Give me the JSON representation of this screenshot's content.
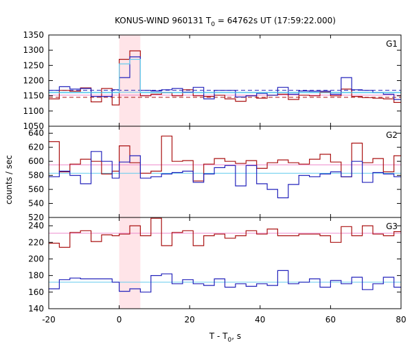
{
  "chart_data": {
    "type": "line",
    "title": "KONUS-WIND 960131 T",
    "title_sub": "0",
    "title_rest": " = 64762s UT (17:59:22.000)",
    "xlabel": "T - T",
    "xlabel_sub": "0",
    "xlabel_rest": ", s",
    "ylabel": "counts / sec",
    "xlim": [
      -20,
      80
    ],
    "xticks": [
      -20,
      0,
      20,
      40,
      60,
      80
    ],
    "highlight_interval": [
      0,
      6
    ],
    "colors": {
      "red": "#aa1111",
      "blue": "#2222bb",
      "pink": "#ee88cc",
      "cyan": "#66ccee",
      "highlight": "#ffe4e8"
    },
    "panels": [
      {
        "name": "G1",
        "ylim": [
          1050,
          1350
        ],
        "yticks": [
          1050,
          1100,
          1150,
          1200,
          1250,
          1300,
          1350
        ],
        "bins_x": [
          -20,
          -17,
          -14,
          -11,
          -8,
          -5,
          -2,
          0,
          3,
          6,
          9,
          12,
          15,
          18,
          21,
          24,
          27,
          30,
          33,
          36,
          39,
          42,
          45,
          48,
          51,
          54,
          57,
          60,
          63,
          66,
          69,
          72,
          75,
          78,
          80
        ],
        "series": [
          {
            "color": "red",
            "values": [
              1140,
              1168,
              1165,
              1176,
              1130,
              1174,
              1120,
              1270,
              1298,
              1150,
              1155,
              1160,
              1150,
              1170,
              1150,
              1148,
              1152,
              1140,
              1132,
              1150,
              1142,
              1152,
              1155,
              1138,
              1152,
              1150,
              1162,
              1150,
              1172,
              1148,
              1144,
              1142,
              1140,
              1128
            ]
          },
          {
            "color": "blue",
            "values": [
              1168,
              1180,
              1172,
              1174,
              1148,
              1148,
              1170,
              1210,
              1278,
              1168,
              1166,
              1170,
              1174,
              1162,
              1178,
              1140,
              1168,
              1168,
              1146,
              1150,
              1158,
              1152,
              1178,
              1155,
              1166,
              1165,
              1165,
              1155,
              1210,
              1170,
              1168,
              1160,
              1155,
              1138
            ]
          },
          {
            "color": "cyan",
            "values": [
              1160,
              1160,
              1160,
              1160,
              1160,
              1160,
              1160,
              1255,
              1270,
              1160,
              1160,
              1160,
              1160,
              1160,
              1160,
              1160,
              1160,
              1160,
              1160,
              1160,
              1160,
              1160,
              1160,
              1160,
              1160,
              1160,
              1160,
              1160,
              1160,
              1160,
              1160,
              1160,
              1160,
              1160
            ]
          }
        ],
        "bg_lines": [
          {
            "color": "blue",
            "value": 1168,
            "dashed": true
          },
          {
            "color": "red",
            "value": 1145,
            "dashed": true
          },
          {
            "color": "pink",
            "value": 1152,
            "dashed": false
          },
          {
            "color": "cyan",
            "value": 1162,
            "dashed": false
          }
        ]
      },
      {
        "name": "G2",
        "ylim": [
          520,
          650
        ],
        "yticks": [
          520,
          540,
          560,
          580,
          600,
          620,
          640
        ],
        "bins_x": [
          -20,
          -17,
          -14,
          -11,
          -8,
          -5,
          -2,
          0,
          3,
          6,
          9,
          12,
          15,
          18,
          21,
          24,
          27,
          30,
          33,
          36,
          39,
          42,
          45,
          48,
          51,
          54,
          57,
          60,
          63,
          66,
          69,
          72,
          75,
          78,
          80
        ],
        "series": [
          {
            "color": "red",
            "values": [
              628,
              585,
              596,
              603,
              600,
              582,
              586,
              622,
              598,
              583,
              586,
              636,
              600,
              601,
              572,
              596,
              604,
              600,
              597,
              601,
              590,
              598,
              602,
              598,
              596,
              603,
              610,
              599,
              578,
              626,
              598,
              604,
              585,
              608
            ]
          },
          {
            "color": "blue",
            "values": [
              578,
              586,
              580,
              568,
              614,
              600,
              576,
              599,
              608,
              576,
              578,
              582,
              584,
              586,
              570,
              582,
              591,
              594,
              565,
              594,
              568,
              560,
              548,
              567,
              580,
              578,
              582,
              585,
              578,
              600,
              570,
              584,
              582,
              578
            ]
          }
        ],
        "bg_lines": [
          {
            "color": "pink",
            "value": 595,
            "dashed": false
          },
          {
            "color": "cyan",
            "value": 583,
            "dashed": false
          }
        ]
      },
      {
        "name": "G3",
        "ylim": [
          140,
          250
        ],
        "yticks": [
          140,
          160,
          180,
          200,
          220,
          240
        ],
        "bins_x": [
          -20,
          -17,
          -14,
          -11,
          -8,
          -5,
          -2,
          0,
          3,
          6,
          9,
          12,
          15,
          18,
          21,
          24,
          27,
          30,
          33,
          36,
          39,
          42,
          45,
          48,
          51,
          54,
          57,
          60,
          63,
          66,
          69,
          72,
          75,
          78,
          80
        ],
        "series": [
          {
            "color": "red",
            "values": [
              219,
              214,
              232,
              234,
              221,
              229,
              228,
              230,
              240,
              228,
              249,
              216,
              232,
              234,
              216,
              228,
              230,
              225,
              228,
              234,
              230,
              236,
              228,
              228,
              230,
              230,
              228,
              220,
              239,
              228,
              240,
              230,
              228,
              233
            ]
          },
          {
            "color": "blue",
            "values": [
              164,
              175,
              177,
              176,
              176,
              176,
              172,
              161,
              164,
              160,
              180,
              182,
              170,
              175,
              170,
              168,
              176,
              166,
              170,
              167,
              170,
              168,
              186,
              170,
              172,
              176,
              166,
              174,
              170,
              178,
              163,
              170,
              178,
              166
            ]
          }
        ],
        "bg_lines": [
          {
            "color": "pink",
            "value": 231,
            "dashed": false
          },
          {
            "color": "cyan",
            "value": 172,
            "dashed": false
          }
        ]
      }
    ]
  }
}
